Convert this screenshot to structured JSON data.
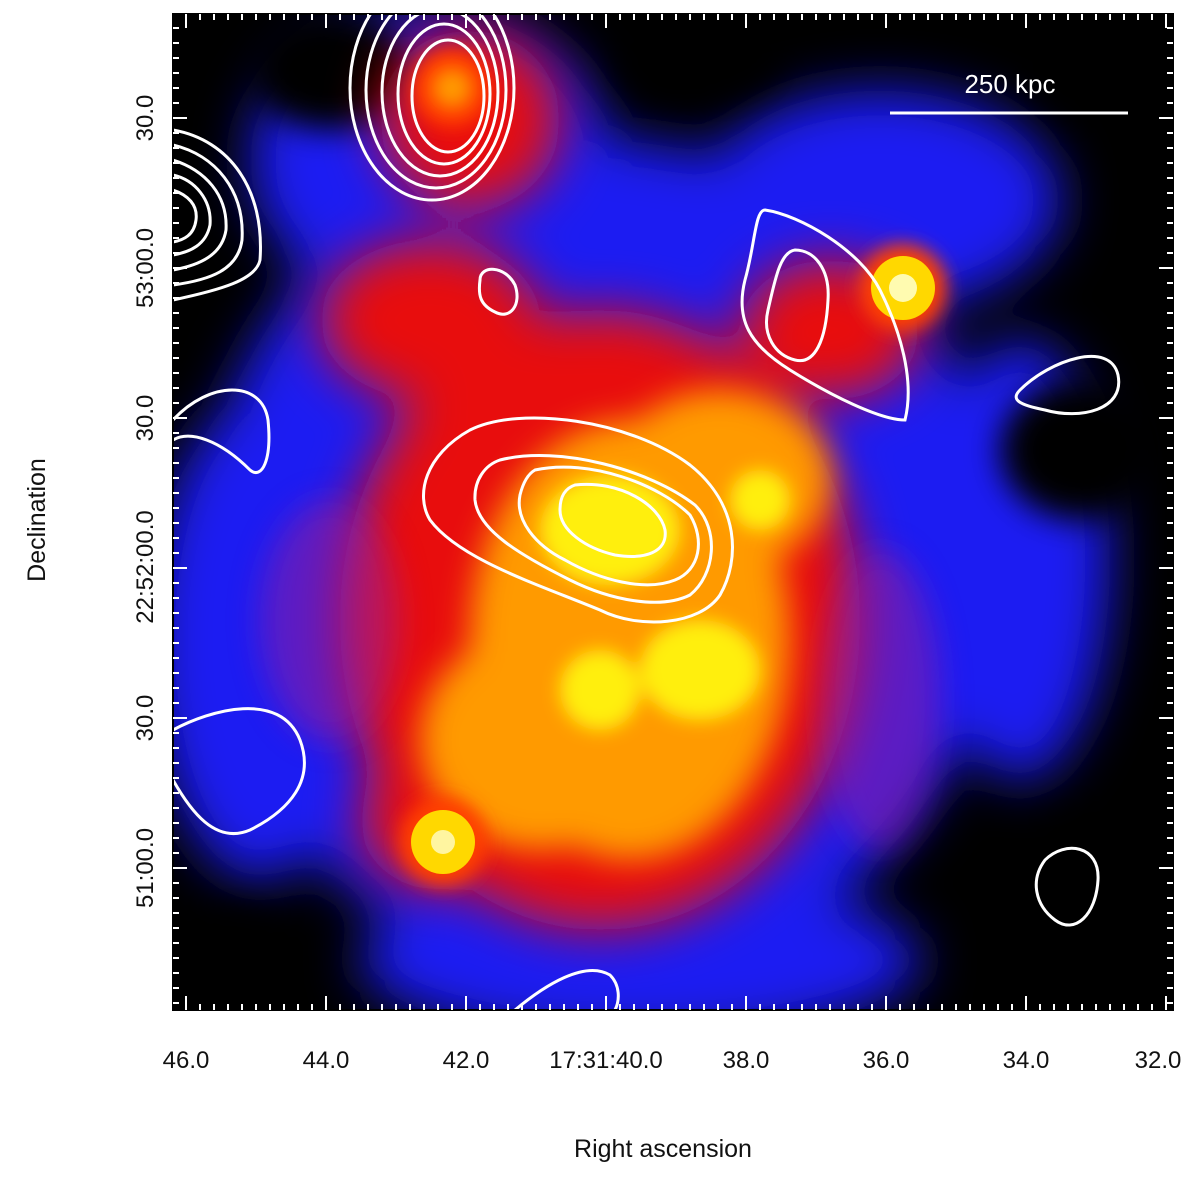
{
  "figure": {
    "xlabel": "Right ascension",
    "ylabel": "Declination",
    "x_ticks": [
      "46.0",
      "44.0",
      "42.0",
      "17:31:40.0",
      "38.0",
      "36.0",
      "34.0",
      "32.0"
    ],
    "y_ticks": [
      "30.0",
      "53:00.0",
      "30.0",
      "22:52:00.0",
      "30.0",
      "51:00.0"
    ],
    "scale_bar_label": "250 kpc",
    "colormap": [
      "#000000",
      "#1a1aff",
      "#ff1a00",
      "#ffff00"
    ]
  }
}
